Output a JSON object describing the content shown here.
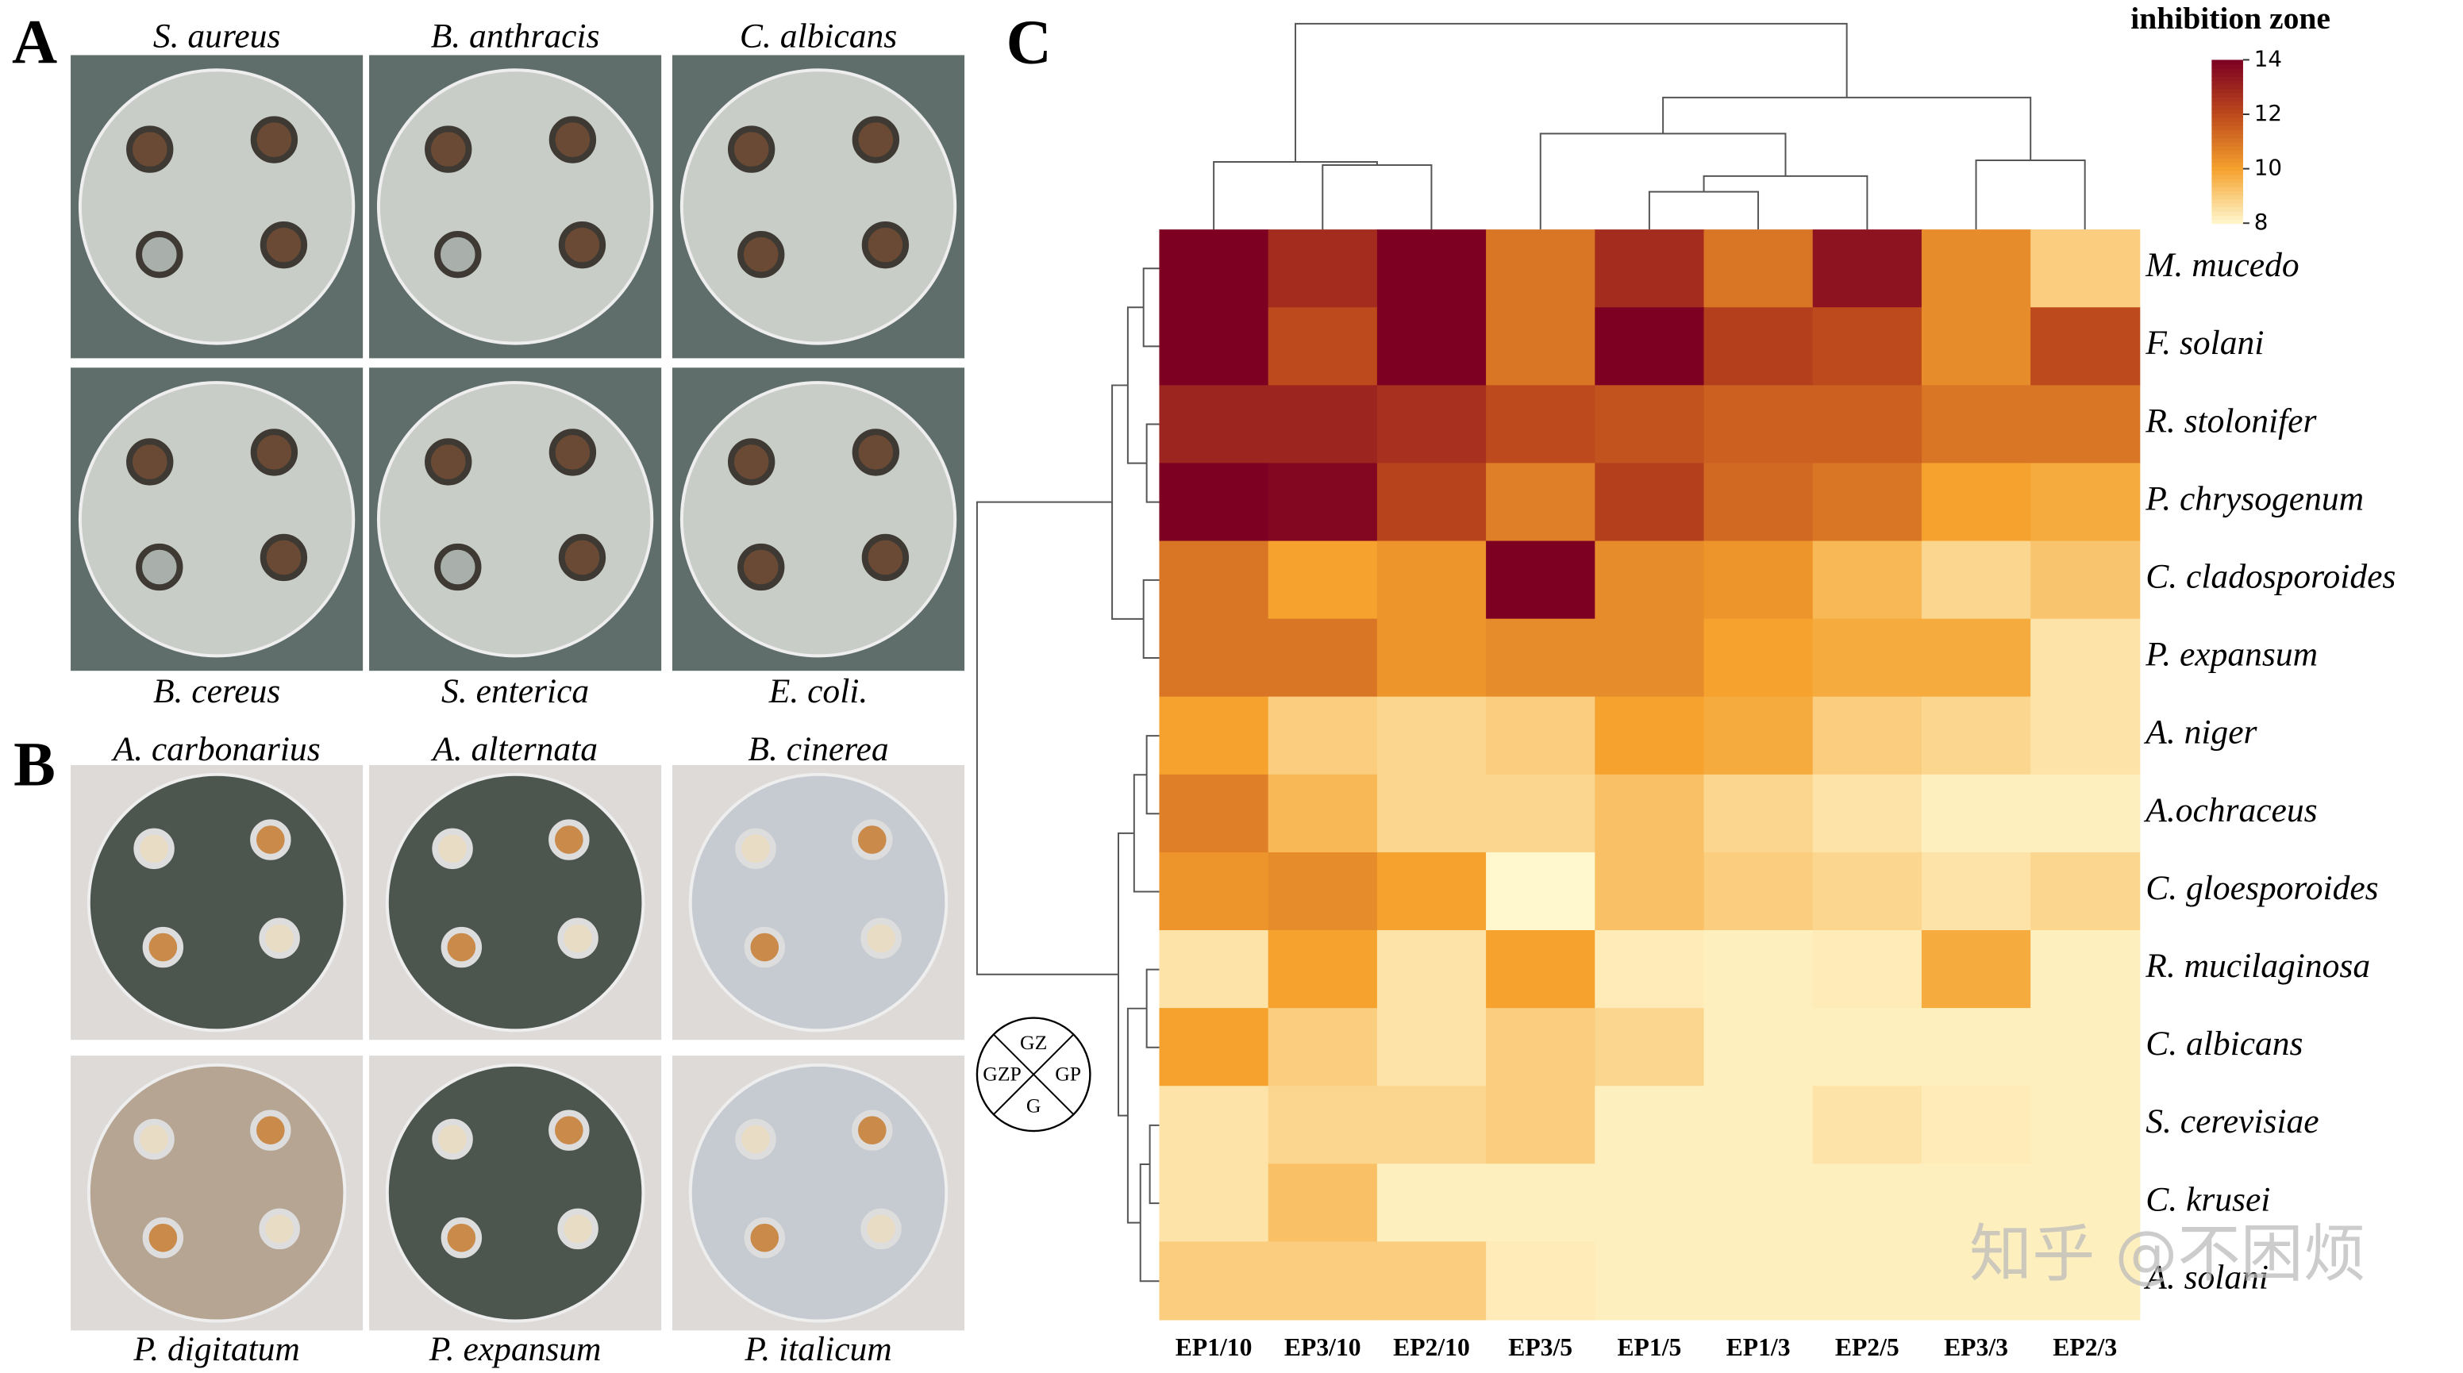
{
  "panels": {
    "A": {
      "letter": "A",
      "top": [
        "S. aureus",
        "B. anthracis",
        "C. albicans"
      ],
      "bottom": [
        "B. cereus",
        "S. enterica",
        "E. coli."
      ]
    },
    "B": {
      "letter": "B",
      "top": [
        "A. carbonarius",
        "A. alternata",
        "B. cinerea"
      ],
      "bottom": [
        "P. digitatum",
        "P. expansum",
        "P. italicum"
      ]
    },
    "C": {
      "letter": "C"
    }
  },
  "key": {
    "top": "GZ",
    "left": "GZP",
    "right": "GP",
    "bottom": "G"
  },
  "watermark": "知乎 @不困烦",
  "chart_data": {
    "type": "heatmap",
    "x": [
      "EP1/10",
      "EP3/10",
      "EP2/10",
      "EP3/5",
      "EP1/5",
      "EP1/3",
      "EP2/5",
      "EP3/3",
      "EP2/3"
    ],
    "y": [
      "M. mucedo",
      "F. solani",
      "R. stolonifer",
      "P. chrysogenum",
      "C. cladosporoides",
      "P. expansum",
      "A. niger",
      "A.ochraceus",
      "C. gloesporoides",
      "R. mucilaginosa",
      "C. albicans",
      "S. cerevisiae",
      "C. krusei",
      "A. solani"
    ],
    "values": [
      [
        14,
        12.8,
        14,
        11,
        12.8,
        11,
        13.5,
        10.5,
        9
      ],
      [
        14,
        12,
        14,
        11,
        14,
        12.3,
        12,
        10.5,
        12
      ],
      [
        13,
        13,
        12.7,
        12,
        11.8,
        11.5,
        11.5,
        11,
        11
      ],
      [
        14,
        13.8,
        12.2,
        10.8,
        12.3,
        11.3,
        11,
        10,
        9.8
      ],
      [
        11,
        10,
        10.3,
        14,
        10.5,
        10.3,
        9.5,
        8.8,
        9.2
      ],
      [
        11,
        11,
        10.3,
        10.5,
        10.5,
        10,
        9.8,
        9.8,
        8.5
      ],
      [
        10,
        9,
        8.8,
        9,
        10,
        9.8,
        9,
        8.8,
        8.5
      ],
      [
        10.8,
        9.5,
        8.8,
        8.8,
        9.3,
        8.8,
        8.5,
        8.2,
        8.2
      ],
      [
        10.3,
        10.5,
        10,
        8,
        9.3,
        9,
        8.8,
        8.5,
        8.8
      ],
      [
        8.5,
        10,
        8.5,
        10,
        8.3,
        8.2,
        8.3,
        9.8,
        8.2
      ],
      [
        10,
        9,
        8.5,
        9,
        8.8,
        8.2,
        8.2,
        8.2,
        8.2
      ],
      [
        8.5,
        8.8,
        8.8,
        9,
        8.2,
        8.2,
        8.5,
        8.3,
        8.2
      ],
      [
        8.5,
        9.3,
        8.2,
        8.2,
        8.2,
        8.2,
        8.2,
        8.2,
        8.2
      ],
      [
        9,
        9,
        9,
        8.3,
        8.2,
        8.2,
        8.2,
        8.2,
        8.2
      ]
    ],
    "colorbar_title": "inhibition zone",
    "zlim": [
      8,
      14
    ],
    "zticks": [
      8,
      10,
      12,
      14
    ],
    "colors": [
      "#fff8cf",
      "#f5a22e",
      "#bd4a1c",
      "#7d0022"
    ]
  }
}
